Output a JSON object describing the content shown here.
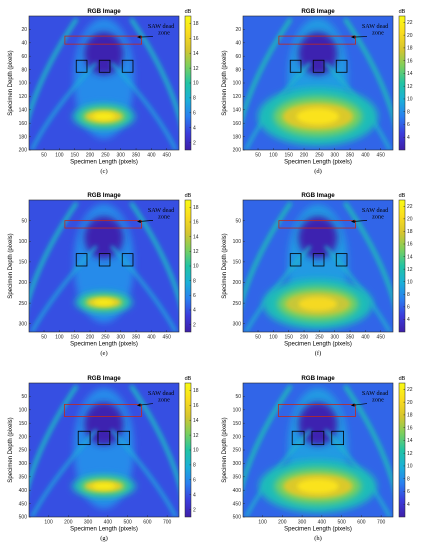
{
  "figure": {
    "colormap": [
      "#3e1fa8",
      "#3b3ddc",
      "#2a7ff0",
      "#1bb0d8",
      "#22c4a4",
      "#7ccf5e",
      "#d6c52f",
      "#fadc1e",
      "#f9fb15"
    ]
  },
  "chart_data": [
    {
      "panel": "(c)",
      "type": "heatmap",
      "title": "RGB Image",
      "xlabel": "Specimen Length (pixels)",
      "ylabel": "Specimen Depth (pixels)",
      "xlim": [
        1,
        490
      ],
      "ylim": [
        0,
        200
      ],
      "xticks": [
        50,
        100,
        150,
        200,
        250,
        300,
        350,
        400,
        450
      ],
      "yticks": [
        20,
        40,
        60,
        80,
        100,
        120,
        140,
        160,
        180,
        200
      ],
      "colorbar": {
        "label": "dB",
        "range": [
          1,
          19
        ],
        "ticks": [
          2,
          4,
          6,
          8,
          10,
          12,
          14,
          16,
          18
        ]
      },
      "annotation": "SAW dead zone",
      "peak_dB": 18,
      "hotspot": {
        "x": 245,
        "y": 150,
        "rx": 60,
        "ry": 9
      },
      "dead_zone": {
        "x0": 118,
        "x1": 368,
        "y0": 30,
        "y1": 42
      },
      "marker_boxes": [
        [
          155,
          66,
          190,
          84
        ],
        [
          230,
          66,
          265,
          84
        ],
        [
          305,
          66,
          340,
          84
        ]
      ]
    },
    {
      "panel": "(d)",
      "type": "heatmap",
      "title": "RGB Image",
      "xlabel": "Specimen Length (pixels)",
      "ylabel": "Specimen Depth (pixels)",
      "xlim": [
        1,
        490
      ],
      "ylim": [
        0,
        200
      ],
      "xticks": [
        50,
        100,
        150,
        200,
        250,
        300,
        350,
        400,
        450
      ],
      "yticks": [
        20,
        40,
        60,
        80,
        100,
        120,
        140,
        160,
        180,
        200
      ],
      "colorbar": {
        "label": "dB",
        "range": [
          2,
          23
        ],
        "ticks": [
          4,
          6,
          8,
          10,
          12,
          14,
          16,
          18,
          20,
          22
        ]
      },
      "annotation": "SAW dead zone",
      "peak_dB": 21,
      "hotspot": {
        "x": 245,
        "y": 150,
        "rx": 115,
        "ry": 20
      },
      "dead_zone": {
        "x0": 118,
        "x1": 368,
        "y0": 30,
        "y1": 42
      },
      "marker_boxes": [
        [
          155,
          66,
          190,
          84
        ],
        [
          230,
          66,
          265,
          84
        ],
        [
          305,
          66,
          340,
          84
        ]
      ]
    },
    {
      "panel": "(e)",
      "type": "heatmap",
      "title": "RGB Image",
      "xlabel": "Specimen Length (pixels)",
      "ylabel": "Specimen Depth (pixels)",
      "xlim": [
        1,
        490
      ],
      "ylim": [
        0,
        320
      ],
      "xticks": [
        50,
        100,
        150,
        200,
        250,
        300,
        350,
        400,
        450
      ],
      "yticks": [
        50,
        100,
        150,
        200,
        250,
        300
      ],
      "colorbar": {
        "label": "dB",
        "range": [
          1,
          19
        ],
        "ticks": [
          2,
          4,
          6,
          8,
          10,
          12,
          14,
          16,
          18
        ]
      },
      "annotation": "SAW dead zone",
      "peak_dB": 18,
      "hotspot": {
        "x": 245,
        "y": 248,
        "rx": 55,
        "ry": 12
      },
      "dead_zone": {
        "x0": 118,
        "x1": 368,
        "y0": 50,
        "y1": 68
      },
      "marker_boxes": [
        [
          155,
          130,
          190,
          160
        ],
        [
          230,
          130,
          265,
          160
        ],
        [
          305,
          130,
          340,
          160
        ]
      ]
    },
    {
      "panel": "(f)",
      "type": "heatmap",
      "title": "RGB Image",
      "xlabel": "Specimen Length (pixels)",
      "ylabel": "Specimen Depth (pixels)",
      "xlim": [
        1,
        490
      ],
      "ylim": [
        0,
        320
      ],
      "xticks": [
        50,
        100,
        150,
        200,
        250,
        300,
        350,
        400,
        450
      ],
      "yticks": [
        50,
        100,
        150,
        200,
        250,
        300
      ],
      "colorbar": {
        "label": "dB",
        "range": [
          2,
          23
        ],
        "ticks": [
          4,
          6,
          8,
          10,
          12,
          14,
          16,
          18,
          20,
          22
        ]
      },
      "annotation": "SAW dead zone",
      "peak_dB": 20,
      "hotspot": {
        "x": 245,
        "y": 252,
        "rx": 105,
        "ry": 28
      },
      "dead_zone": {
        "x0": 118,
        "x1": 368,
        "y0": 50,
        "y1": 68
      },
      "marker_boxes": [
        [
          155,
          130,
          190,
          160
        ],
        [
          230,
          130,
          265,
          160
        ],
        [
          305,
          130,
          340,
          160
        ]
      ]
    },
    {
      "panel": "(g)",
      "type": "heatmap",
      "title": "RGB Image",
      "xlabel": "Specimen Length (pixels)",
      "ylabel": "Specimen Depth (pixels)",
      "xlim": [
        1,
        760
      ],
      "ylim": [
        0,
        500
      ],
      "xticks": [
        100,
        200,
        300,
        400,
        500,
        600,
        700
      ],
      "yticks": [
        50,
        100,
        150,
        200,
        250,
        300,
        350,
        400,
        450,
        500
      ],
      "colorbar": {
        "label": "dB",
        "range": [
          1,
          19
        ],
        "ticks": [
          2,
          4,
          6,
          8,
          10,
          12,
          14,
          16,
          18
        ]
      },
      "annotation": "SAW dead zone",
      "peak_dB": 18,
      "hotspot": {
        "x": 380,
        "y": 385,
        "rx": 95,
        "ry": 20
      },
      "dead_zone": {
        "x0": 180,
        "x1": 570,
        "y0": 80,
        "y1": 125
      },
      "marker_boxes": [
        [
          250,
          180,
          310,
          230
        ],
        [
          350,
          180,
          410,
          230
        ],
        [
          450,
          180,
          510,
          230
        ]
      ]
    },
    {
      "panel": "(h)",
      "type": "heatmap",
      "title": "RGB Image",
      "xlabel": "Specimen Length (pixels)",
      "ylabel": "Specimen Depth (pixels)",
      "xlim": [
        1,
        760
      ],
      "ylim": [
        0,
        500
      ],
      "xticks": [
        100,
        200,
        300,
        400,
        500,
        600,
        700
      ],
      "yticks": [
        50,
        100,
        150,
        200,
        250,
        300,
        350,
        400,
        450,
        500
      ],
      "colorbar": {
        "label": "dB",
        "range": [
          2,
          23
        ],
        "ticks": [
          4,
          6,
          8,
          10,
          12,
          14,
          16,
          18,
          20,
          22
        ]
      },
      "annotation": "SAW dead zone",
      "peak_dB": 21,
      "hotspot": {
        "x": 380,
        "y": 385,
        "rx": 175,
        "ry": 45
      },
      "dead_zone": {
        "x0": 180,
        "x1": 570,
        "y0": 80,
        "y1": 125
      },
      "marker_boxes": [
        [
          250,
          180,
          310,
          230
        ],
        [
          350,
          180,
          410,
          230
        ],
        [
          450,
          180,
          510,
          230
        ]
      ]
    }
  ]
}
